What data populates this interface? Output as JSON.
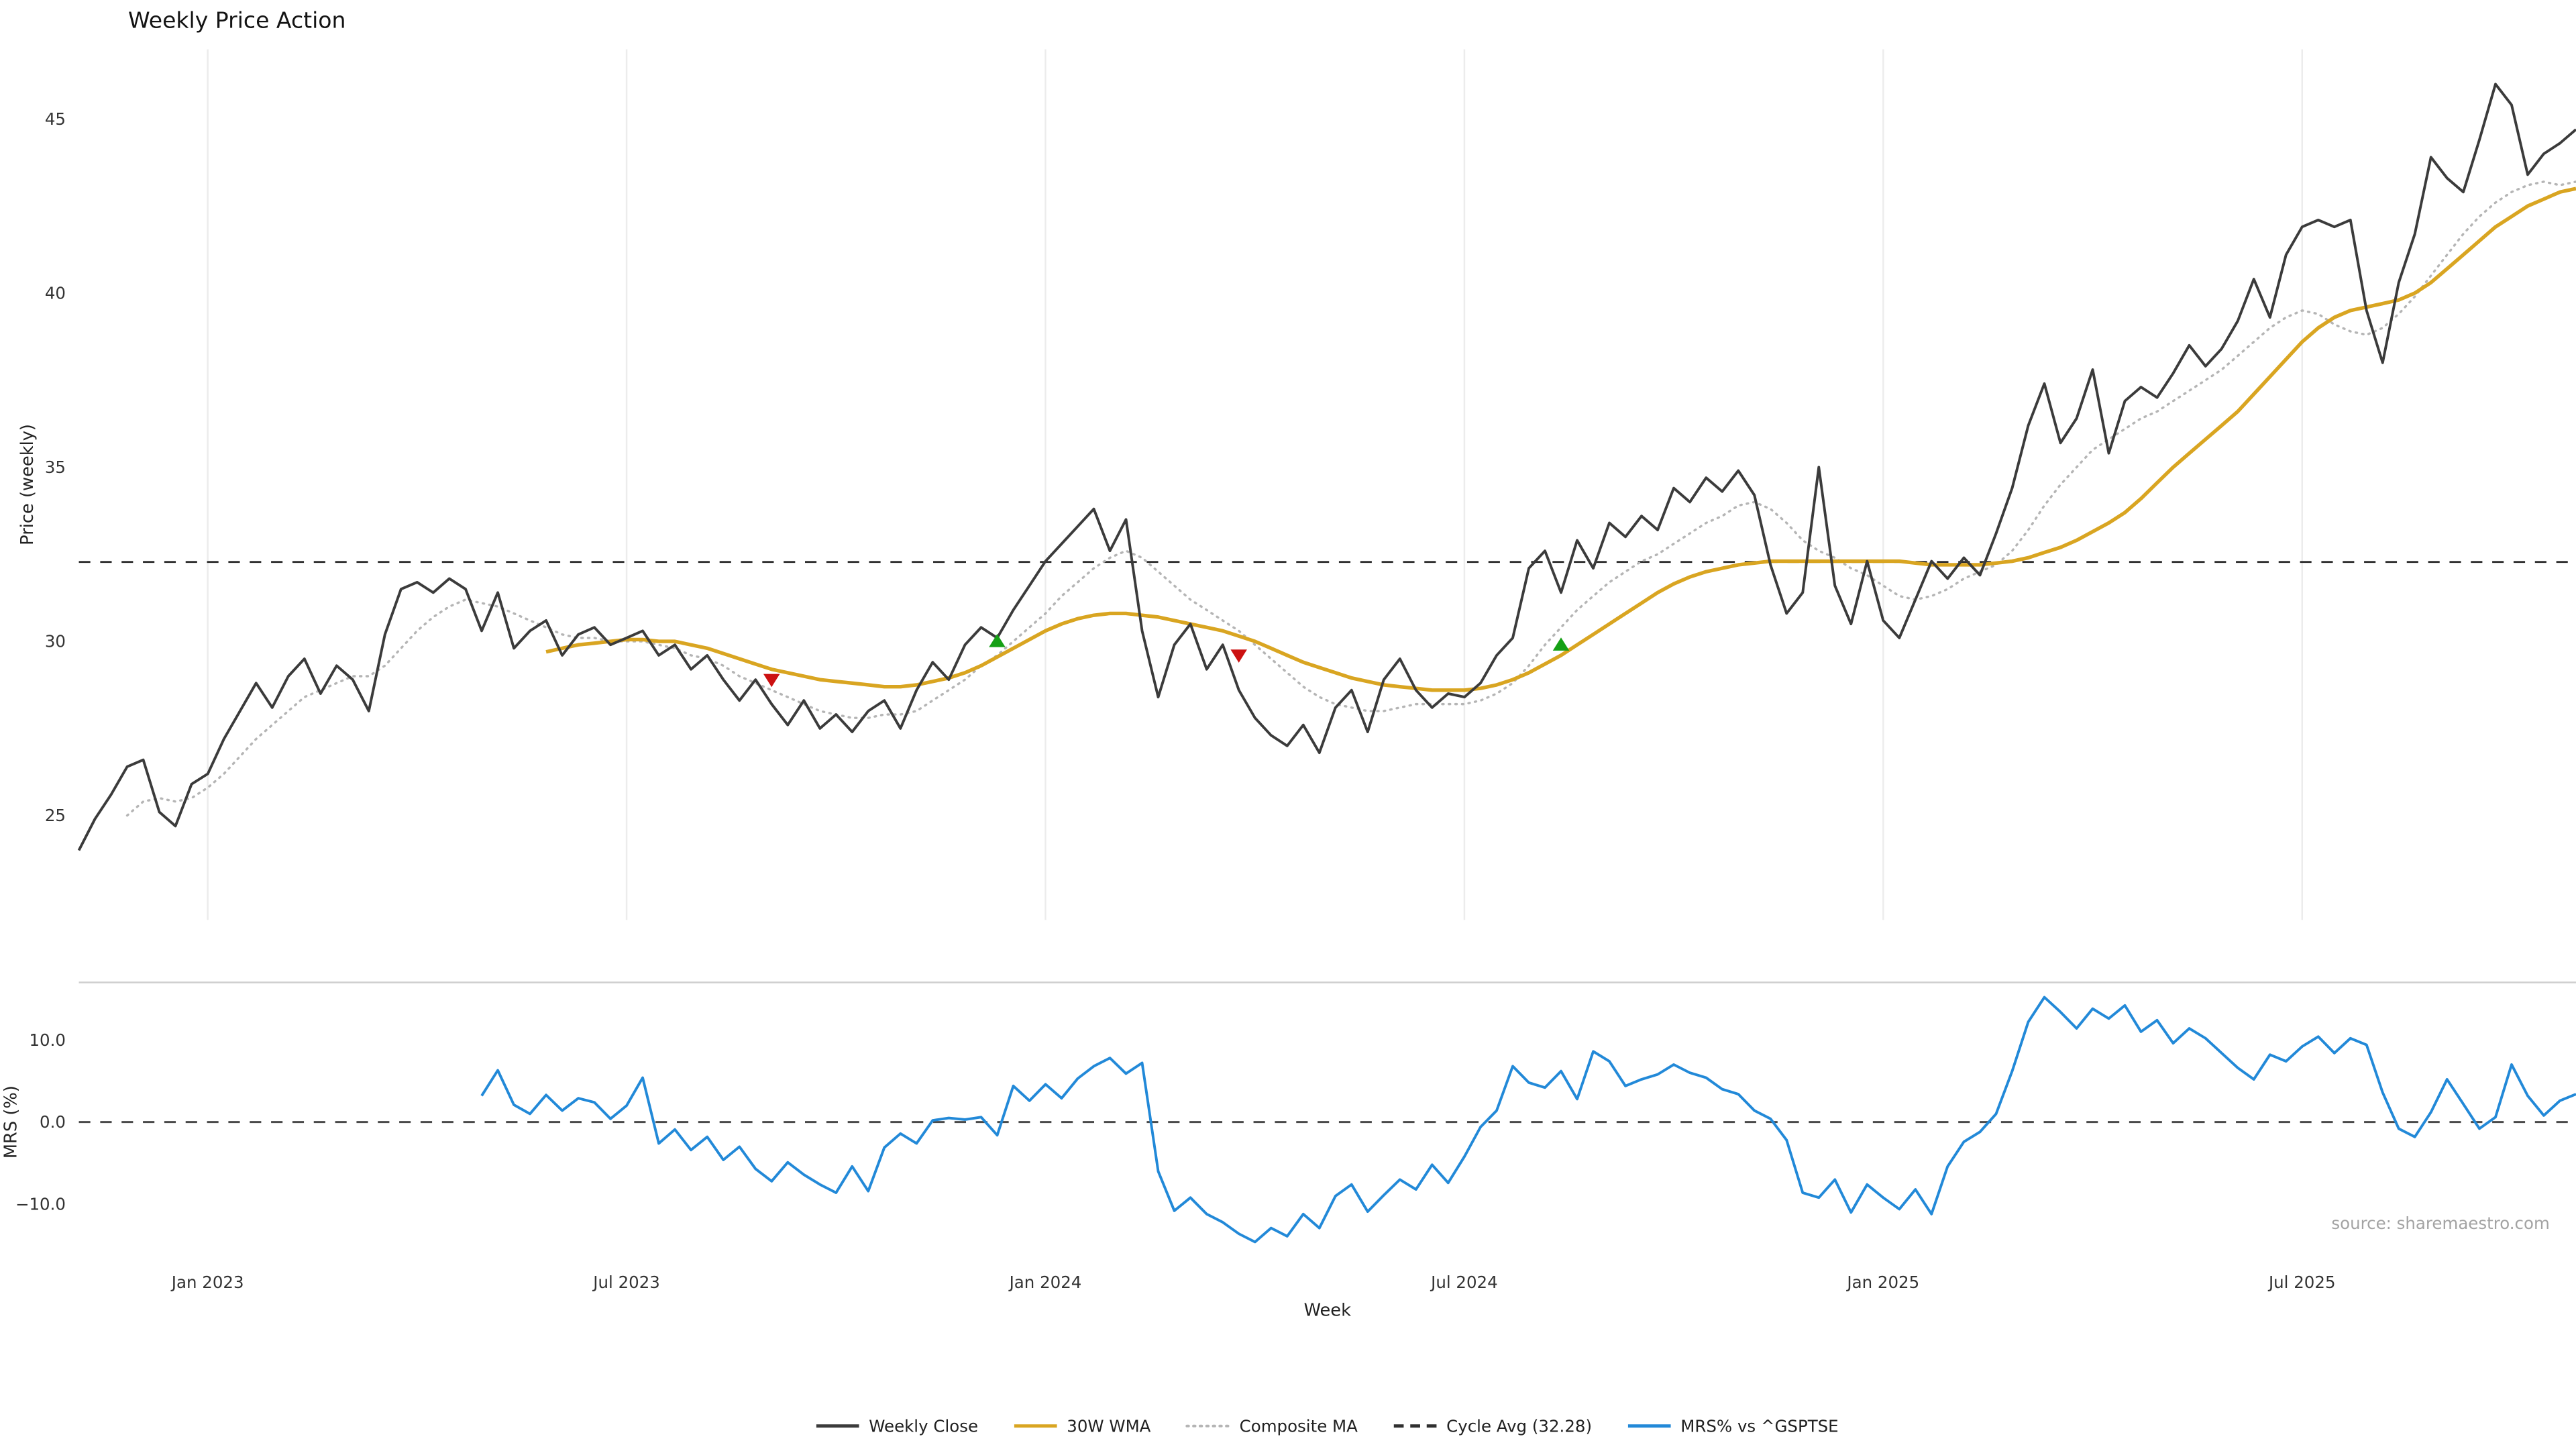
{
  "title": "Weekly Price Action",
  "source": "source: sharemaestro.com",
  "colors": {
    "close": "#3b3b3b",
    "wma": "#d9a521",
    "composite": "#b5b5b5",
    "cycle": "#2f2f2f",
    "mrs": "#2289d8",
    "buy": "#15a015",
    "sell": "#cc1111",
    "grid": "#ececec",
    "spine": "#cfcfcf",
    "zero": "#4a4a4a"
  },
  "legend": [
    {
      "label": "Weekly Close",
      "style": "solid",
      "color": "#3b3b3b"
    },
    {
      "label": "30W WMA",
      "style": "solid",
      "color": "#d9a521"
    },
    {
      "label": "Composite MA",
      "style": "dotted",
      "color": "#b5b5b5"
    },
    {
      "label": "Cycle Avg (32.28)",
      "style": "dashed",
      "color": "#2f2f2f"
    },
    {
      "label": "MRS% vs ^GSPTSE",
      "style": "solid",
      "color": "#2289d8"
    }
  ],
  "chart_data": [
    {
      "type": "line",
      "panel": "price",
      "title": "Weekly Price Action",
      "ylabel": "Price (weekly)",
      "ylim": [
        22,
        47
      ],
      "yticks": [
        25,
        30,
        35,
        40,
        45
      ],
      "xlim": [
        0,
        155
      ],
      "x_unit": "weekly, Nov 2022 - Nov 2025",
      "xticks": [
        {
          "week": 8,
          "label": "Jan 2023"
        },
        {
          "week": 34,
          "label": "Jul 2023"
        },
        {
          "week": 60,
          "label": "Jan 2024"
        },
        {
          "week": 86,
          "label": "Jul 2024"
        },
        {
          "week": 112,
          "label": "Jan 2025"
        },
        {
          "week": 138,
          "label": "Jul 2025"
        }
      ],
      "grid": "vertical-only",
      "cycle_avg": 32.28,
      "markers": [
        {
          "week": 43,
          "price": 28.9,
          "type": "sell"
        },
        {
          "week": 57,
          "price": 30.0,
          "type": "buy"
        },
        {
          "week": 72,
          "price": 29.6,
          "type": "sell"
        },
        {
          "week": 92,
          "price": 29.9,
          "type": "buy"
        }
      ],
      "series": [
        {
          "name": "Weekly Close",
          "color": "#3b3b3b",
          "style": "solid",
          "values": [
            24.0,
            24.9,
            25.6,
            26.4,
            26.6,
            25.1,
            24.7,
            25.9,
            26.2,
            27.2,
            28.0,
            28.8,
            28.1,
            29.0,
            29.5,
            28.5,
            29.3,
            28.9,
            28.0,
            30.2,
            31.5,
            31.7,
            31.4,
            31.8,
            31.5,
            30.3,
            31.4,
            29.8,
            30.3,
            30.6,
            29.6,
            30.2,
            30.4,
            29.9,
            30.1,
            30.3,
            29.6,
            29.9,
            29.2,
            29.6,
            28.9,
            28.3,
            28.9,
            28.2,
            27.6,
            28.3,
            27.5,
            27.9,
            27.4,
            28.0,
            28.3,
            27.5,
            28.6,
            29.4,
            28.9,
            29.9,
            30.4,
            30.1,
            30.9,
            31.6,
            32.3,
            32.8,
            33.3,
            33.8,
            32.6,
            33.5,
            30.3,
            28.4,
            29.9,
            30.5,
            29.2,
            29.9,
            28.6,
            27.8,
            27.3,
            27.0,
            27.6,
            26.8,
            28.1,
            28.6,
            27.4,
            28.9,
            29.5,
            28.6,
            28.1,
            28.5,
            28.4,
            28.8,
            29.6,
            30.1,
            32.1,
            32.6,
            31.4,
            32.9,
            32.1,
            33.4,
            33.0,
            33.6,
            33.2,
            34.4,
            34.0,
            34.7,
            34.3,
            34.9,
            34.2,
            32.2,
            30.8,
            31.4,
            35.0,
            31.6,
            30.5,
            32.3,
            30.6,
            30.1,
            31.2,
            32.3,
            31.8,
            32.4,
            31.9,
            33.1,
            34.4,
            36.2,
            37.4,
            35.7,
            36.4,
            37.8,
            35.4,
            36.9,
            37.3,
            37.0,
            37.7,
            38.5,
            37.9,
            38.4,
            39.2,
            40.4,
            39.3,
            41.1,
            41.9,
            42.1,
            41.9,
            42.1,
            39.5,
            38.0,
            40.3,
            41.7,
            43.9,
            43.3,
            42.9,
            44.4,
            46.0,
            45.4,
            43.4,
            44.0,
            44.3,
            44.7
          ]
        },
        {
          "name": "30W WMA",
          "color": "#d9a521",
          "style": "solid",
          "values": [
            null,
            null,
            null,
            null,
            null,
            null,
            null,
            null,
            null,
            null,
            null,
            null,
            null,
            null,
            null,
            null,
            null,
            null,
            null,
            null,
            null,
            null,
            null,
            null,
            null,
            null,
            null,
            null,
            null,
            29.7,
            29.8,
            29.9,
            29.95,
            30.0,
            30.05,
            30.05,
            30.0,
            30.0,
            29.9,
            29.8,
            29.65,
            29.5,
            29.35,
            29.2,
            29.1,
            29.0,
            28.9,
            28.85,
            28.8,
            28.75,
            28.7,
            28.7,
            28.75,
            28.85,
            28.95,
            29.1,
            29.3,
            29.55,
            29.8,
            30.05,
            30.3,
            30.5,
            30.65,
            30.75,
            30.8,
            30.8,
            30.75,
            30.7,
            30.6,
            30.5,
            30.4,
            30.3,
            30.15,
            30.0,
            29.8,
            29.6,
            29.4,
            29.25,
            29.1,
            28.95,
            28.85,
            28.75,
            28.7,
            28.65,
            28.6,
            28.6,
            28.6,
            28.65,
            28.75,
            28.9,
            29.1,
            29.35,
            29.6,
            29.9,
            30.2,
            30.5,
            30.8,
            31.1,
            31.4,
            31.65,
            31.85,
            32.0,
            32.1,
            32.2,
            32.25,
            32.3,
            32.3,
            32.3,
            32.3,
            32.3,
            32.3,
            32.3,
            32.3,
            32.3,
            32.25,
            32.2,
            32.2,
            32.2,
            32.2,
            32.25,
            32.3,
            32.4,
            32.55,
            32.7,
            32.9,
            33.15,
            33.4,
            33.7,
            34.1,
            34.55,
            35.0,
            35.4,
            35.8,
            36.2,
            36.6,
            37.1,
            37.6,
            38.1,
            38.6,
            39.0,
            39.3,
            39.5,
            39.6,
            39.7,
            39.8,
            40.0,
            40.3,
            40.7,
            41.1,
            41.5,
            41.9,
            42.2,
            42.5,
            42.7,
            42.9,
            43.0
          ]
        },
        {
          "name": "Composite MA",
          "color": "#b5b5b5",
          "style": "dotted",
          "values": [
            null,
            null,
            null,
            25.0,
            25.4,
            25.5,
            25.4,
            25.5,
            25.8,
            26.2,
            26.7,
            27.2,
            27.6,
            28.0,
            28.4,
            28.6,
            28.8,
            29.0,
            29.0,
            29.3,
            29.8,
            30.3,
            30.7,
            31.0,
            31.2,
            31.1,
            31.0,
            30.8,
            30.6,
            30.4,
            30.2,
            30.1,
            30.1,
            30.0,
            30.0,
            30.0,
            29.9,
            29.8,
            29.6,
            29.5,
            29.3,
            29.0,
            28.8,
            28.6,
            28.4,
            28.2,
            28.0,
            27.9,
            27.8,
            27.8,
            27.9,
            27.9,
            28.0,
            28.3,
            28.6,
            28.9,
            29.3,
            29.6,
            30.0,
            30.4,
            30.8,
            31.3,
            31.7,
            32.1,
            32.4,
            32.6,
            32.4,
            32.0,
            31.6,
            31.2,
            30.9,
            30.6,
            30.3,
            29.9,
            29.5,
            29.1,
            28.7,
            28.4,
            28.2,
            28.1,
            28.0,
            28.0,
            28.1,
            28.2,
            28.2,
            28.2,
            28.2,
            28.3,
            28.5,
            28.8,
            29.3,
            29.9,
            30.4,
            30.9,
            31.3,
            31.7,
            32.0,
            32.3,
            32.5,
            32.8,
            33.1,
            33.4,
            33.6,
            33.9,
            34.0,
            33.8,
            33.4,
            32.9,
            32.6,
            32.4,
            32.1,
            31.9,
            31.6,
            31.3,
            31.2,
            31.3,
            31.5,
            31.8,
            32.0,
            32.2,
            32.6,
            33.2,
            33.9,
            34.5,
            35.0,
            35.5,
            35.8,
            36.1,
            36.4,
            36.6,
            36.9,
            37.2,
            37.5,
            37.8,
            38.2,
            38.6,
            39.0,
            39.3,
            39.5,
            39.4,
            39.1,
            38.9,
            38.8,
            39.0,
            39.4,
            39.9,
            40.5,
            41.1,
            41.7,
            42.2,
            42.6,
            42.9,
            43.1,
            43.2,
            43.1,
            43.2
          ]
        }
      ]
    },
    {
      "type": "line",
      "panel": "mrs",
      "ylabel": "MRS (%)",
      "xlabel": "Week",
      "ylim": [
        -17,
        17
      ],
      "yticks": [
        {
          "value": 10,
          "label": "10.0"
        },
        {
          "value": 0,
          "label": "0.0"
        },
        {
          "value": -10,
          "label": "−10.0"
        }
      ],
      "zero_line": 0,
      "series": [
        {
          "name": "MRS% vs ^GSPTSE",
          "color": "#2289d8",
          "style": "solid",
          "values": [
            null,
            null,
            null,
            null,
            null,
            null,
            null,
            null,
            null,
            null,
            null,
            null,
            null,
            null,
            null,
            null,
            null,
            null,
            null,
            null,
            null,
            null,
            null,
            null,
            null,
            3.2,
            6.3,
            2.1,
            1.0,
            3.3,
            1.4,
            2.9,
            2.4,
            0.4,
            2.0,
            5.4,
            -2.6,
            -0.9,
            -3.4,
            -1.8,
            -4.6,
            -3.0,
            -5.7,
            -7.2,
            -4.9,
            -6.4,
            -7.6,
            -8.6,
            -5.4,
            -8.4,
            -3.1,
            -1.4,
            -2.6,
            0.2,
            0.5,
            0.3,
            0.6,
            -1.6,
            4.4,
            2.6,
            4.6,
            2.9,
            5.3,
            6.8,
            7.8,
            5.9,
            7.2,
            -6.0,
            -10.8,
            -9.2,
            -11.2,
            -12.2,
            -13.6,
            -14.6,
            -12.9,
            -13.9,
            -11.2,
            -12.9,
            -9.0,
            -7.6,
            -10.9,
            -8.9,
            -7.0,
            -8.2,
            -5.2,
            -7.4,
            -4.2,
            -0.6,
            1.4,
            6.8,
            4.8,
            4.2,
            6.2,
            2.8,
            8.6,
            7.4,
            4.4,
            5.2,
            5.8,
            7.0,
            6.0,
            5.4,
            4.0,
            3.4,
            1.4,
            0.4,
            -2.2,
            -8.6,
            -9.2,
            -7.0,
            -11.0,
            -7.6,
            -9.2,
            -10.6,
            -8.2,
            -11.2,
            -5.4,
            -2.4,
            -1.2,
            1.0,
            6.2,
            12.2,
            15.2,
            13.4,
            11.4,
            13.8,
            12.6,
            14.2,
            11.0,
            12.4,
            9.6,
            11.4,
            10.2,
            8.4,
            6.6,
            5.2,
            8.2,
            7.4,
            9.2,
            10.4,
            8.4,
            10.2,
            9.4,
            3.6,
            -0.8,
            -1.8,
            1.2,
            5.2,
            2.2,
            -0.8,
            0.6,
            7.0,
            3.2,
            0.8,
            2.6,
            3.4
          ]
        }
      ]
    }
  ]
}
